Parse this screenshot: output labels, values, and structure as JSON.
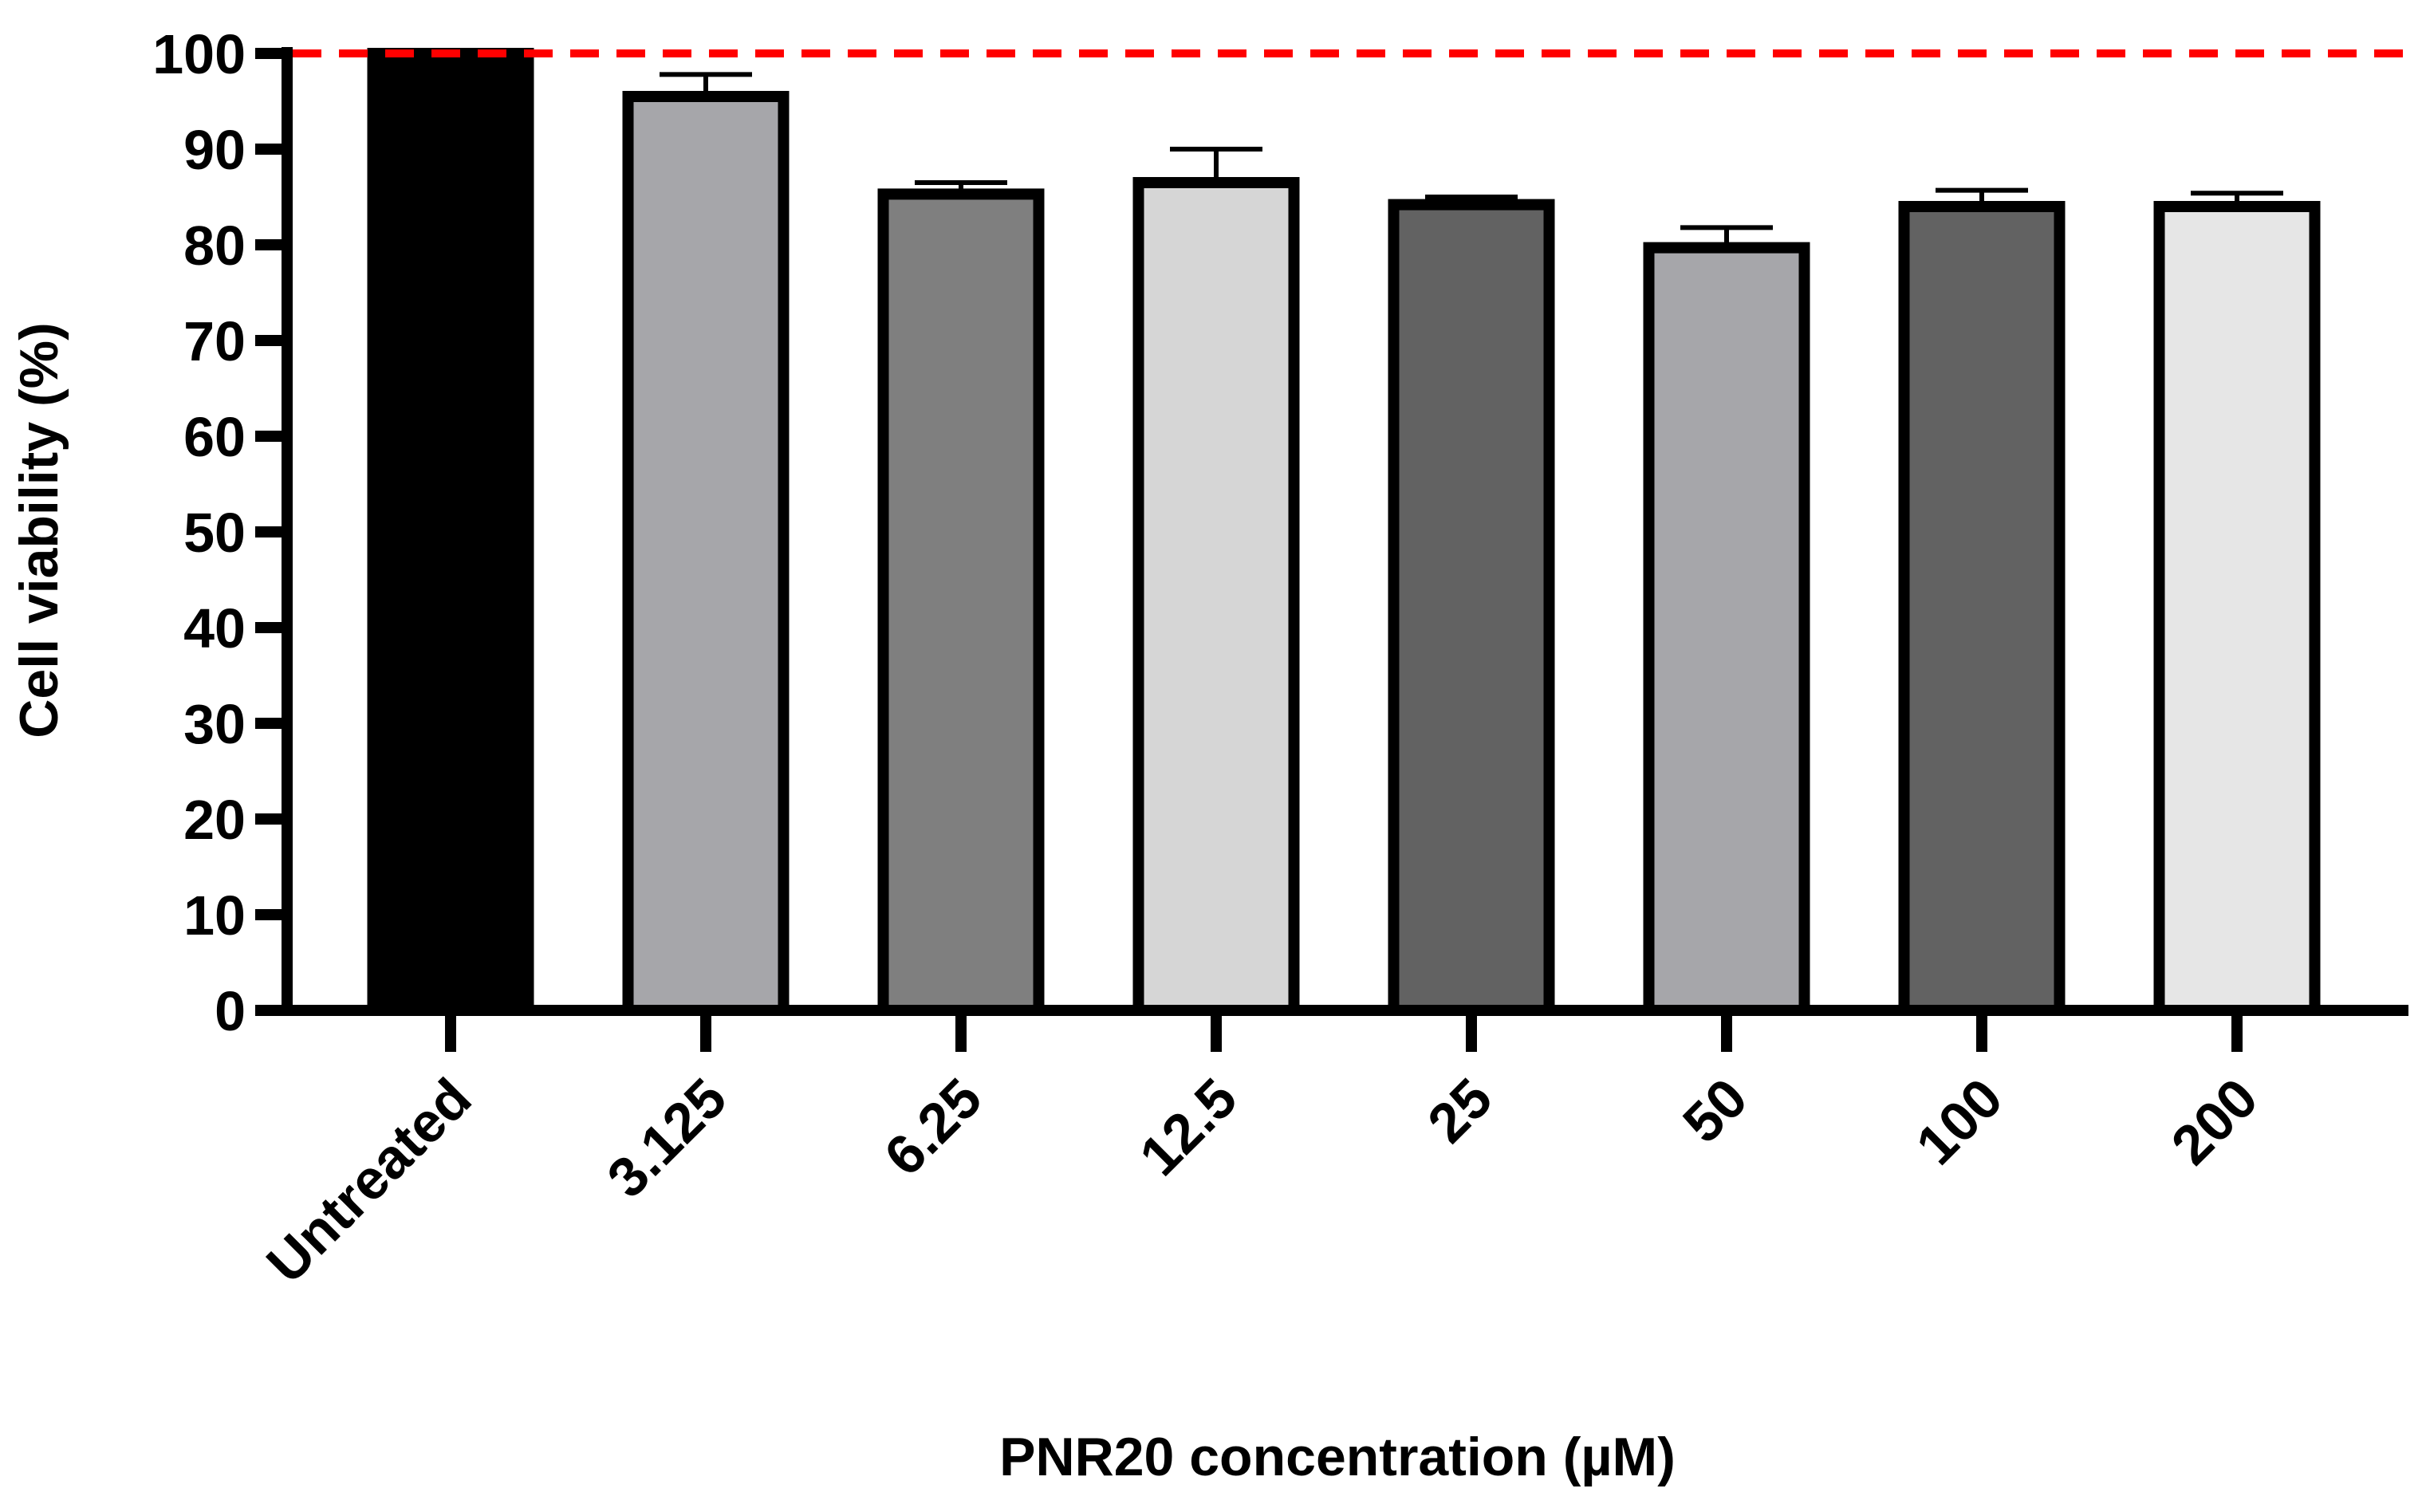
{
  "chart_data": {
    "type": "bar",
    "title": "",
    "xlabel": "PNR20 concentration (µM)",
    "ylabel": "Cell viability (%)",
    "ylim": [
      0,
      100
    ],
    "yticks": [
      "0",
      "10",
      "20",
      "30",
      "40",
      "50",
      "60",
      "70",
      "80",
      "90",
      "100"
    ],
    "categories": [
      "Untreated",
      "3.125",
      "6.25",
      "12.5",
      "25",
      "50",
      "100",
      "200"
    ],
    "values": [
      100,
      95.5,
      85.3,
      86.5,
      84.2,
      79.7,
      84.0,
      84.0
    ],
    "error_upper": [
      0,
      2.3,
      1.2,
      3.5,
      0.8,
      2.1,
      1.7,
      1.4
    ],
    "bar_colors": [
      "#000000",
      "#a6a6aa",
      "#7f7f7f",
      "#d6d6d6",
      "#626262",
      "#a6a6aa",
      "#626262",
      "#e6e6e6"
    ],
    "reference_line": {
      "value": 100,
      "color": "#ff0000",
      "style": "dashed"
    },
    "grid": false,
    "legend": "none"
  }
}
